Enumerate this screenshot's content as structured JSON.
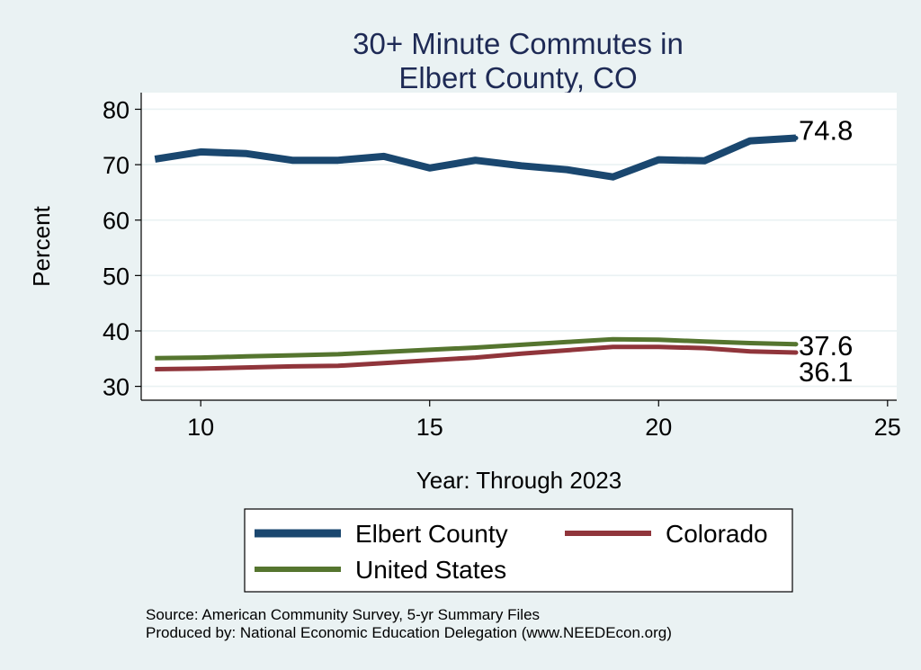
{
  "chart_data": {
    "type": "line",
    "title_lines": [
      "30+ Minute Commutes in",
      "Elbert County, CO"
    ],
    "xlabel": "Year: Through 2023",
    "ylabel": "Percent",
    "xlim": [
      8.7,
      25.2
    ],
    "ylim": [
      27.5,
      83
    ],
    "xticks": [
      10,
      15,
      20,
      25
    ],
    "yticks": [
      30,
      40,
      50,
      60,
      70,
      80
    ],
    "grid": true,
    "legend_position": "bottom",
    "x": [
      9,
      10,
      11,
      12,
      13,
      14,
      15,
      16,
      17,
      18,
      19,
      20,
      21,
      22,
      23
    ],
    "series": [
      {
        "name": "Elbert County",
        "color": "#1a476f",
        "values": [
          71.0,
          72.3,
          72.0,
          70.8,
          70.8,
          71.5,
          69.4,
          70.8,
          69.8,
          69.1,
          67.8,
          70.9,
          70.7,
          74.3,
          74.8
        ],
        "end_label": "74.8"
      },
      {
        "name": "Colorado",
        "color": "#90353b",
        "values": [
          33.1,
          33.2,
          33.4,
          33.6,
          33.7,
          34.2,
          34.7,
          35.2,
          35.9,
          36.5,
          37.1,
          37.1,
          36.9,
          36.3,
          36.1
        ],
        "end_label": "36.1"
      },
      {
        "name": "United States",
        "color": "#55752f",
        "values": [
          35.1,
          35.2,
          35.4,
          35.6,
          35.8,
          36.2,
          36.6,
          37.0,
          37.5,
          38.0,
          38.5,
          38.4,
          38.1,
          37.8,
          37.6
        ],
        "end_label": "37.6"
      }
    ]
  },
  "footer": {
    "source": "Source: American Community Survey, 5-yr Summary Files",
    "produced": "Produced by: National Economic Education Delegation (www.NEEDEcon.org)"
  }
}
